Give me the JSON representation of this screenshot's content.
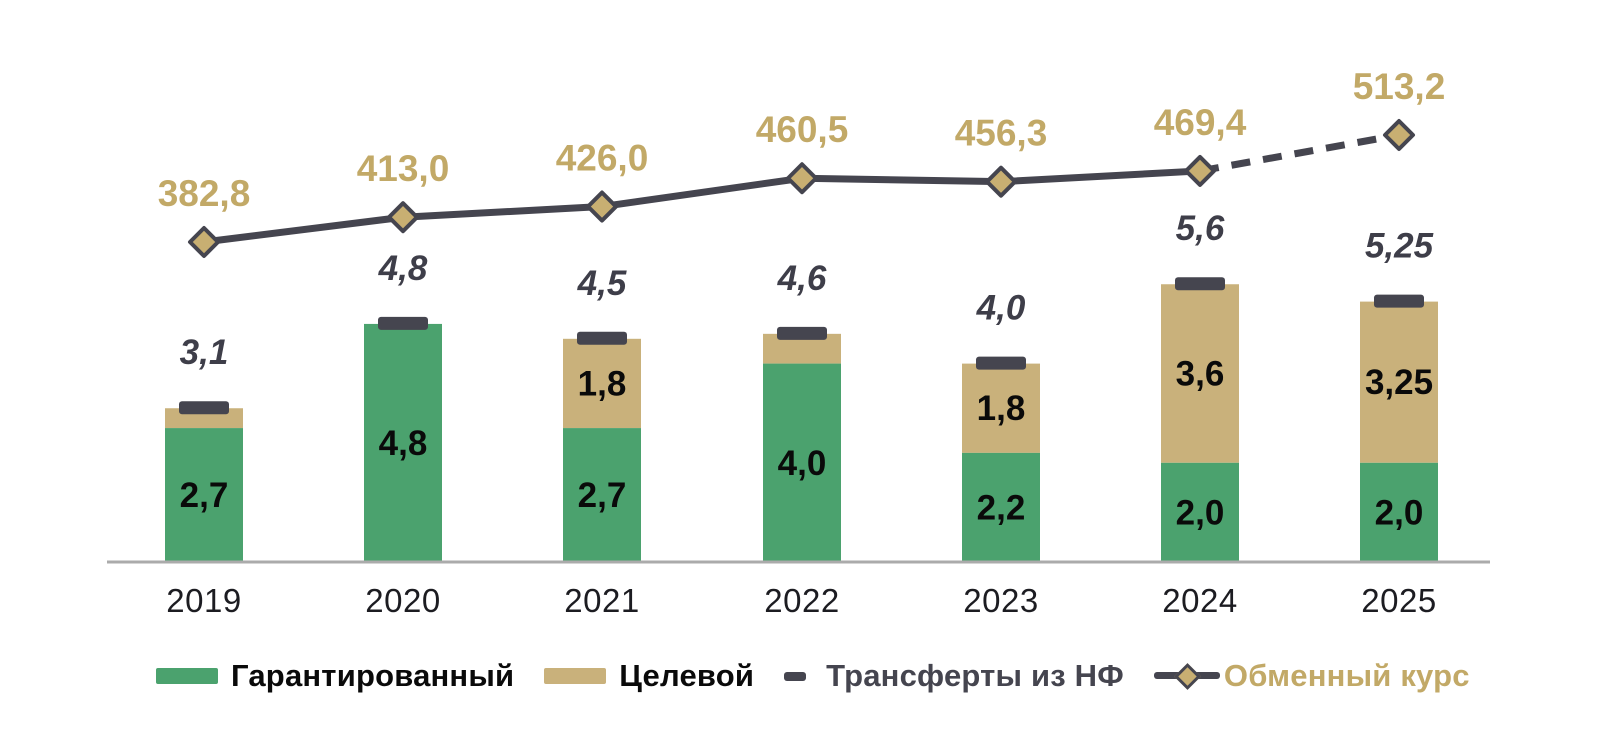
{
  "chart_data": {
    "type": "bar",
    "subtype": "stacked-bars-with-line",
    "categories": [
      "2019",
      "2020",
      "2021",
      "2022",
      "2023",
      "2024",
      "2025"
    ],
    "series": [
      {
        "name": "Гарантированный",
        "type": "bar",
        "color": "#4BA26E",
        "values": [
          2.7,
          4.8,
          2.7,
          4.0,
          2.2,
          2.0,
          2.0
        ],
        "labels": [
          "2,7",
          "4,8",
          "2,7",
          "4,0",
          "2,2",
          "2,0",
          "2,0"
        ]
      },
      {
        "name": "Целевой",
        "type": "bar",
        "color": "#C9B17B",
        "values": [
          0.4,
          0,
          1.8,
          0.6,
          1.8,
          3.6,
          3.25
        ],
        "labels": [
          "",
          "",
          "1,8",
          "",
          "1,8",
          "3,6",
          "3,25"
        ]
      },
      {
        "name": "Трансферты из НФ",
        "type": "tick-marker",
        "color": "#45454F",
        "on_all_bars": true
      },
      {
        "name": "Обменный курс",
        "type": "line",
        "color": "#45454F",
        "marker": "diamond",
        "marker_fill": "#C8AF72",
        "values": [
          382.8,
          413.0,
          426.0,
          460.5,
          456.3,
          469.4,
          513.2
        ],
        "labels": [
          "382,8",
          "413,0",
          "426,0",
          "460,5",
          "456,3",
          "469,4",
          "513,2"
        ],
        "dashed_from_index": 5
      }
    ],
    "totals": {
      "values": [
        3.1,
        4.8,
        4.5,
        4.6,
        4.0,
        5.6,
        5.25
      ],
      "labels": [
        "3,1",
        "4,8",
        "4,5",
        "4,6",
        "4,0",
        "5,6",
        "5,25"
      ]
    },
    "title": "",
    "xlabel": "",
    "ylabel": "",
    "ylim": [
      0,
      6
    ],
    "grid": false,
    "legend_position": "bottom"
  },
  "colors": {
    "bar_label": "#0A0A0A",
    "total_label": "#3E3E49",
    "exchange_label": "#C2A967",
    "year_label": "#1C1C21",
    "axis_line": "#ABABAB"
  }
}
